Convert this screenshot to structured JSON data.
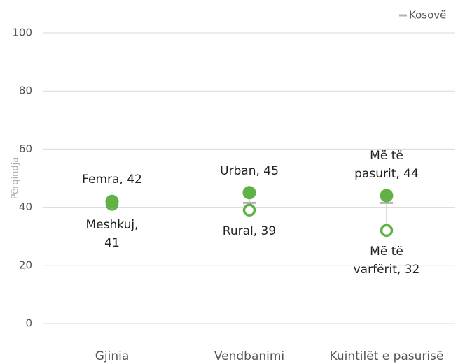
{
  "chart_data": {
    "type": "dot",
    "categories": [
      "Gjinia",
      "Vendbanimi",
      "Kuintilët e pasurisë"
    ],
    "y_label": "Përqindja",
    "series": [
      {
        "name": "Kosovë",
        "color": "#b3b3b3",
        "values": [
          41.5,
          41.5,
          41.5
        ]
      },
      {
        "color": "#62b146",
        "marker": "filled",
        "values": [
          42,
          45,
          44
        ],
        "value_labels": [
          "Femra, 42",
          "Urban, 45",
          "Më të\npasurit, 44"
        ]
      },
      {
        "color": "#62b146",
        "marker": "hollow",
        "values": [
          41,
          39,
          32
        ],
        "value_labels": [
          "Meshkuj,\n41",
          "Rural, 39",
          "Më të\nvarfërit, 32"
        ]
      }
    ],
    "ylim": [
      0,
      100
    ],
    "yticks": [
      0,
      20,
      40,
      60,
      80,
      100
    ],
    "grid": true,
    "legend": "top-right"
  }
}
